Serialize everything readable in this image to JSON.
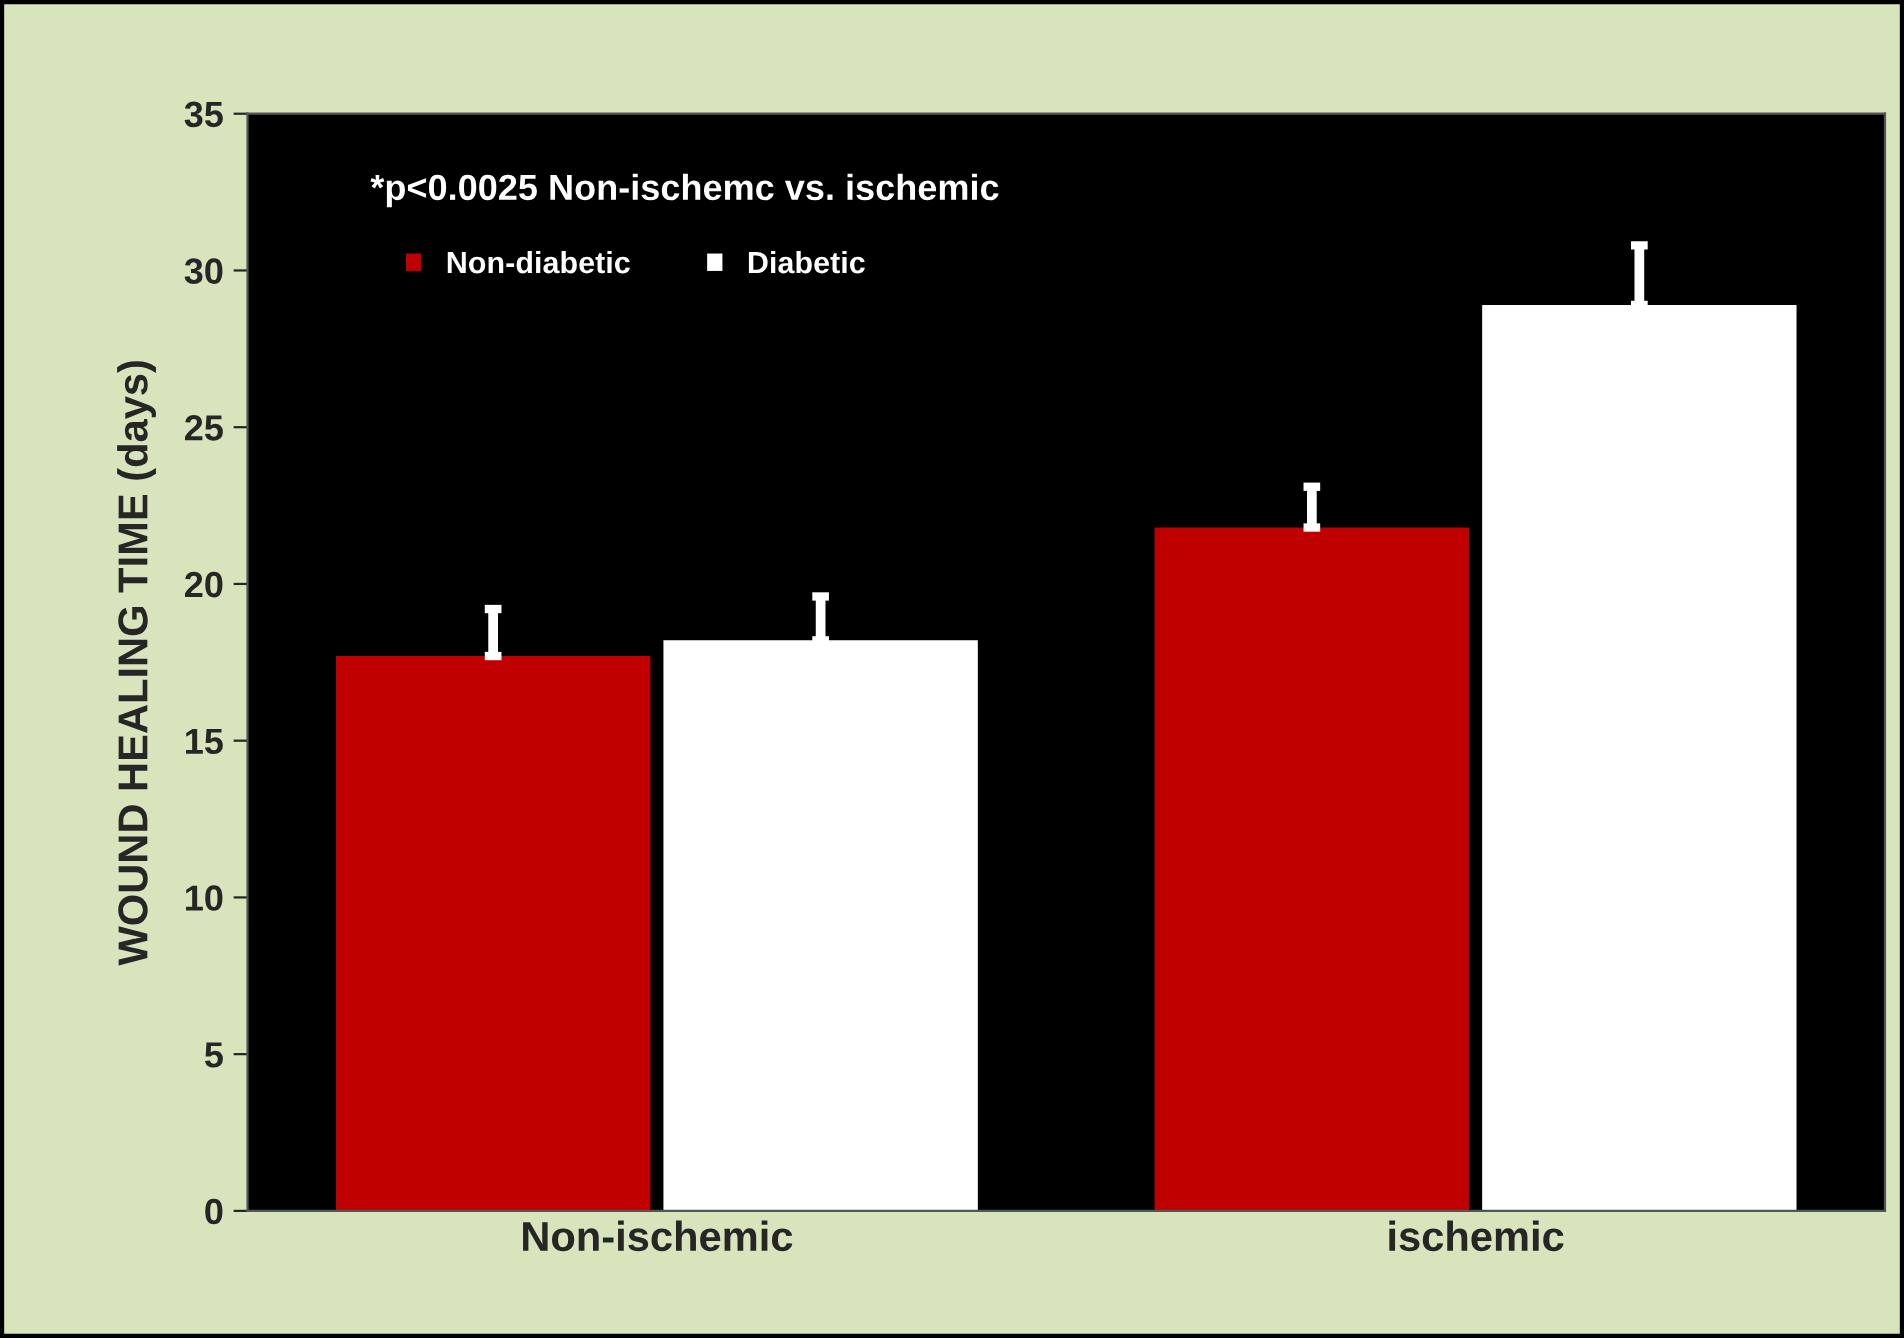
{
  "chart_data": {
    "type": "bar",
    "ylabel": "WOUND HEALING TIME (days)",
    "annotations": [
      "*p<0.0025 Non-ischemc vs. ischemic"
    ],
    "categories": [
      "Non-ischemic",
      "ischemic"
    ],
    "series": [
      {
        "name": "Non-diabetic",
        "color": "#c00000",
        "values": [
          17.7,
          21.8
        ],
        "errors": [
          [
            17.7,
            19.2
          ],
          [
            21.8,
            23.1
          ]
        ]
      },
      {
        "name": "Diabetic",
        "color": "#ffffff",
        "values": [
          18.2,
          28.9
        ],
        "errors": [
          [
            18.2,
            19.6
          ],
          [
            28.9,
            30.8
          ]
        ]
      }
    ],
    "ylim": [
      0,
      35
    ],
    "yticks": [
      0,
      5,
      10,
      15,
      20,
      25,
      30,
      35
    ],
    "grid": false,
    "legend": "top left"
  }
}
